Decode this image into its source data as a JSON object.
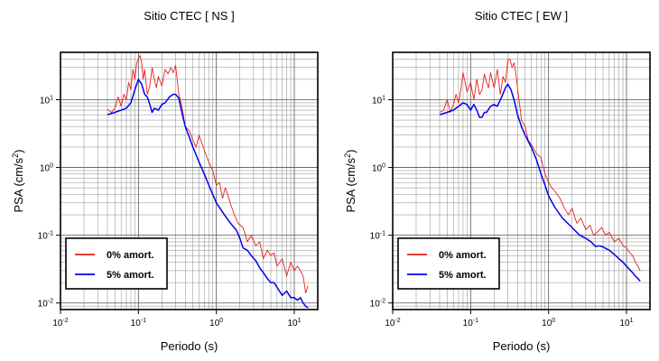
{
  "chart_data": [
    {
      "type": "line",
      "title": "Sitio CTEC [ NS ]",
      "xlabel": "Periodo (s)",
      "ylabel": "PSA (cm/s²)",
      "xscale": "log",
      "yscale": "log",
      "xlim": [
        0.01,
        20
      ],
      "ylim": [
        0.008,
        50
      ],
      "grid": true,
      "legend_position": "bottom-left",
      "x_ticks": [
        {
          "value": 0.01,
          "base": "10",
          "exp": "-2"
        },
        {
          "value": 0.1,
          "base": "10",
          "exp": "-1"
        },
        {
          "value": 1,
          "base": "10",
          "exp": "0"
        },
        {
          "value": 10,
          "base": "10",
          "exp": "1"
        }
      ],
      "y_ticks": [
        {
          "value": 0.01,
          "base": "10",
          "exp": "-2"
        },
        {
          "value": 0.1,
          "base": "10",
          "exp": "-1"
        },
        {
          "value": 1,
          "base": "10",
          "exp": "0"
        },
        {
          "value": 10,
          "base": "10",
          "exp": "1"
        }
      ],
      "series": [
        {
          "name": "0% amort.",
          "color": "#e8201c",
          "x": [
            0.04,
            0.045,
            0.05,
            0.055,
            0.06,
            0.065,
            0.07,
            0.075,
            0.08,
            0.085,
            0.09,
            0.095,
            0.1,
            0.105,
            0.11,
            0.115,
            0.12,
            0.13,
            0.14,
            0.15,
            0.16,
            0.17,
            0.18,
            0.2,
            0.22,
            0.24,
            0.26,
            0.28,
            0.3,
            0.33,
            0.36,
            0.4,
            0.45,
            0.5,
            0.55,
            0.6,
            0.7,
            0.8,
            0.9,
            1.0,
            1.1,
            1.2,
            1.3,
            1.4,
            1.5,
            1.7,
            1.9,
            2.2,
            2.5,
            2.8,
            3.2,
            3.6,
            4.0,
            4.5,
            5.0,
            5.5,
            6.0,
            7.0,
            8.0,
            9.0,
            10.0,
            11.0,
            12.0,
            13.0,
            14.0,
            15.0
          ],
          "y": [
            7.2,
            6.5,
            7.5,
            11,
            8,
            12,
            10,
            18,
            14,
            28,
            20,
            35,
            40,
            45,
            35,
            20,
            28,
            12,
            16,
            30,
            20,
            15,
            22,
            16,
            28,
            24,
            30,
            25,
            32,
            12,
            8,
            4,
            3.5,
            2.5,
            2,
            3,
            1.8,
            1.2,
            0.9,
            0.55,
            0.6,
            0.35,
            0.5,
            0.4,
            0.3,
            0.2,
            0.15,
            0.13,
            0.08,
            0.1,
            0.07,
            0.08,
            0.045,
            0.06,
            0.05,
            0.055,
            0.035,
            0.045,
            0.025,
            0.04,
            0.03,
            0.035,
            0.03,
            0.025,
            0.014,
            0.018
          ]
        },
        {
          "name": "5% amort.",
          "color": "#0000ee",
          "x": [
            0.04,
            0.05,
            0.06,
            0.07,
            0.08,
            0.09,
            0.1,
            0.11,
            0.12,
            0.13,
            0.14,
            0.15,
            0.16,
            0.18,
            0.2,
            0.22,
            0.25,
            0.28,
            0.3,
            0.33,
            0.36,
            0.4,
            0.45,
            0.5,
            0.6,
            0.7,
            0.8,
            0.9,
            1.0,
            1.2,
            1.4,
            1.6,
            1.8,
            2.0,
            2.2,
            2.5,
            2.8,
            3.2,
            3.6,
            4.0,
            4.5,
            5.0,
            5.5,
            6.0,
            7.0,
            8.0,
            9.0,
            10.0,
            11.0,
            12.0,
            13.0,
            14.0,
            15.0
          ],
          "y": [
            6,
            6.5,
            7,
            7.5,
            9,
            14,
            20,
            17,
            12,
            11,
            8.5,
            6.5,
            7.5,
            7,
            8.5,
            9,
            11,
            12,
            12,
            10.5,
            6.5,
            4,
            2.8,
            2,
            1.2,
            0.8,
            0.55,
            0.4,
            0.3,
            0.22,
            0.17,
            0.14,
            0.12,
            0.09,
            0.065,
            0.06,
            0.05,
            0.042,
            0.033,
            0.028,
            0.023,
            0.02,
            0.02,
            0.017,
            0.013,
            0.015,
            0.012,
            0.012,
            0.011,
            0.012,
            0.01,
            0.009,
            0.0085
          ]
        }
      ]
    },
    {
      "type": "line",
      "title": "Sitio CTEC [ EW ]",
      "xlabel": "Periodo (s)",
      "ylabel": "PSA (cm/s²)",
      "xscale": "log",
      "yscale": "log",
      "xlim": [
        0.01,
        20
      ],
      "ylim": [
        0.008,
        50
      ],
      "grid": true,
      "legend_position": "bottom-left",
      "x_ticks": [
        {
          "value": 0.01,
          "base": "10",
          "exp": "-2"
        },
        {
          "value": 0.1,
          "base": "10",
          "exp": "-1"
        },
        {
          "value": 1,
          "base": "10",
          "exp": "0"
        },
        {
          "value": 10,
          "base": "10",
          "exp": "1"
        }
      ],
      "y_ticks": [
        {
          "value": 0.01,
          "base": "10",
          "exp": "-2"
        },
        {
          "value": 0.1,
          "base": "10",
          "exp": "-1"
        },
        {
          "value": 1,
          "base": "10",
          "exp": "0"
        },
        {
          "value": 10,
          "base": "10",
          "exp": "1"
        }
      ],
      "series": [
        {
          "name": "0% amort.",
          "color": "#e8201c",
          "x": [
            0.04,
            0.045,
            0.05,
            0.055,
            0.06,
            0.065,
            0.07,
            0.075,
            0.08,
            0.09,
            0.1,
            0.11,
            0.12,
            0.13,
            0.14,
            0.15,
            0.16,
            0.17,
            0.18,
            0.2,
            0.22,
            0.24,
            0.26,
            0.28,
            0.3,
            0.32,
            0.34,
            0.36,
            0.38,
            0.4,
            0.45,
            0.5,
            0.55,
            0.6,
            0.7,
            0.8,
            0.9,
            1.0,
            1.1,
            1.2,
            1.4,
            1.6,
            1.8,
            2.0,
            2.3,
            2.6,
            3.0,
            3.4,
            3.8,
            4.2,
            4.8,
            5.4,
            6.0,
            7.0,
            8.0,
            9.0,
            10.0,
            11.0,
            12.0,
            13.0,
            14.0,
            15.0
          ],
          "y": [
            6.5,
            7,
            10,
            6.5,
            8.5,
            12,
            9,
            14,
            25,
            13,
            18,
            10,
            20,
            12,
            14,
            24,
            18,
            15,
            25,
            15,
            28,
            12,
            22,
            18,
            38,
            40,
            30,
            35,
            25,
            15,
            5,
            4,
            2.5,
            2.2,
            1.6,
            1.4,
            0.8,
            0.6,
            0.5,
            0.45,
            0.35,
            0.25,
            0.2,
            0.25,
            0.15,
            0.18,
            0.12,
            0.14,
            0.1,
            0.11,
            0.13,
            0.1,
            0.11,
            0.08,
            0.09,
            0.07,
            0.065,
            0.055,
            0.05,
            0.04,
            0.035,
            0.03
          ]
        },
        {
          "name": "5% amort.",
          "color": "#0000ee",
          "x": [
            0.04,
            0.05,
            0.06,
            0.07,
            0.08,
            0.09,
            0.1,
            0.11,
            0.12,
            0.13,
            0.14,
            0.15,
            0.16,
            0.18,
            0.2,
            0.22,
            0.25,
            0.28,
            0.3,
            0.33,
            0.36,
            0.4,
            0.45,
            0.5,
            0.6,
            0.7,
            0.8,
            0.9,
            1.0,
            1.2,
            1.5,
            2.0,
            2.5,
            3.0,
            3.5,
            4.0,
            4.5,
            5.0,
            6.0,
            7.0,
            8.0,
            9.0,
            10.0,
            11.0,
            12.0,
            13.0,
            14.0,
            15.0
          ],
          "y": [
            6,
            6.5,
            7,
            8,
            9,
            8.5,
            7,
            8.5,
            7,
            5.5,
            5.5,
            6.5,
            6.5,
            8,
            8.5,
            8,
            11,
            15,
            17,
            14,
            10,
            6,
            4,
            3,
            2,
            1.3,
            0.8,
            0.55,
            0.38,
            0.26,
            0.18,
            0.13,
            0.1,
            0.09,
            0.08,
            0.068,
            0.07,
            0.067,
            0.06,
            0.052,
            0.045,
            0.04,
            0.035,
            0.031,
            0.028,
            0.025,
            0.023,
            0.021
          ]
        }
      ]
    }
  ]
}
